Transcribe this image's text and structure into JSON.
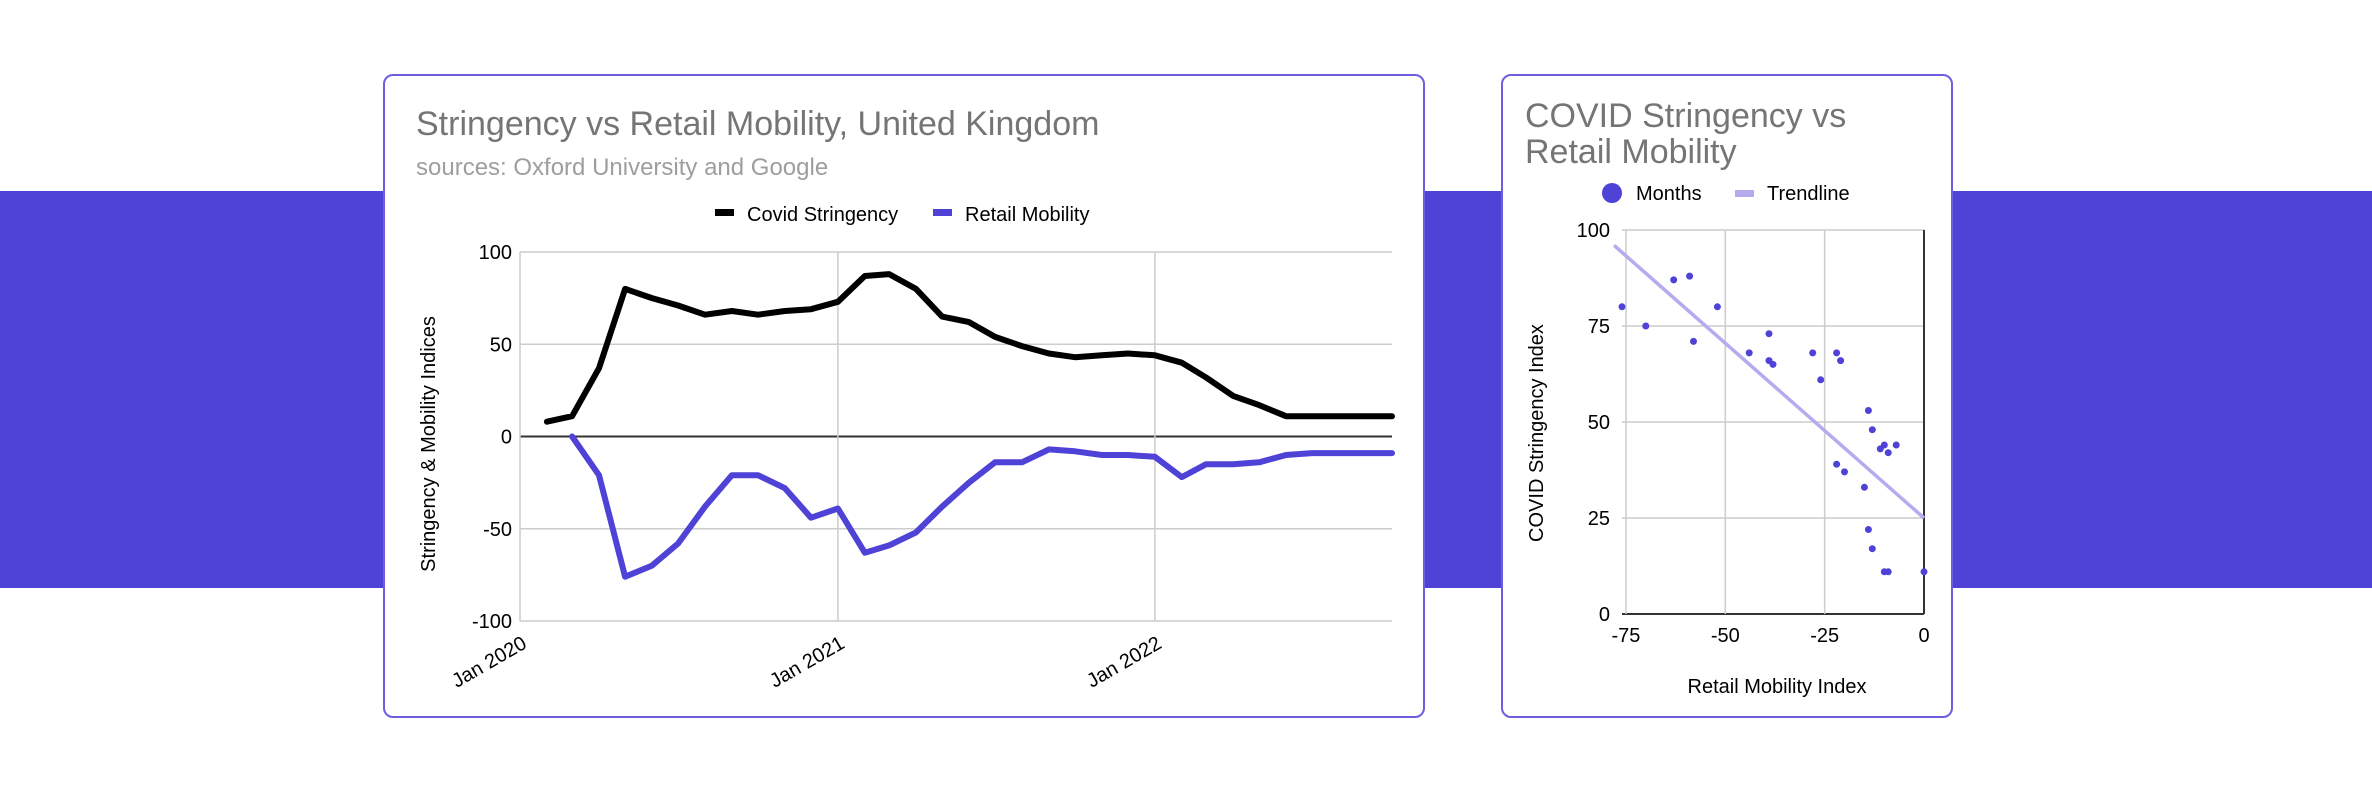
{
  "chart_data": [
    {
      "type": "line",
      "title": "Stringency vs Retail Mobility, United Kingdom",
      "subtitle": "sources: Oxford University and Google",
      "xlabel": "",
      "ylabel": "Stringency & Mobility Indices",
      "x_tick_labels": [
        "Jan 2020",
        "Jan 2021",
        "Jan 2022"
      ],
      "y_tick_labels": [
        "100",
        "50",
        "0",
        "-50",
        "-100"
      ],
      "ylim": [
        -100,
        100
      ],
      "grid": true,
      "legend_position": "top",
      "x": [
        "2020-02",
        "2020-03",
        "2020-04",
        "2020-05",
        "2020-06",
        "2020-07",
        "2020-08",
        "2020-09",
        "2020-10",
        "2020-11",
        "2020-12",
        "2021-01",
        "2021-02",
        "2021-03",
        "2021-04",
        "2021-05",
        "2021-06",
        "2021-07",
        "2021-08",
        "2021-09",
        "2021-10",
        "2021-11",
        "2021-12",
        "2022-01",
        "2022-02",
        "2022-03",
        "2022-04",
        "2022-05",
        "2022-06",
        "2022-07",
        "2022-08",
        "2022-09",
        "2022-10"
      ],
      "series": [
        {
          "name": "Covid Stringency",
          "color": "#000000",
          "values": [
            8,
            11,
            37,
            80,
            75,
            71,
            66,
            68,
            66,
            68,
            69,
            73,
            87,
            88,
            80,
            65,
            62,
            54,
            49,
            45,
            43,
            44,
            45,
            44,
            40,
            32,
            22,
            17,
            11,
            11,
            11,
            11,
            11
          ]
        },
        {
          "name": "Retail Mobility",
          "color": "#4f42d6",
          "values": [
            null,
            0,
            -21,
            -76,
            -70,
            -58,
            -38,
            -21,
            -21,
            -28,
            -44,
            -39,
            -63,
            -59,
            -52,
            -38,
            -25,
            -14,
            -14,
            -7,
            -8,
            -10,
            -10,
            -11,
            -22,
            -15,
            -15,
            -14,
            -10,
            -9,
            -9,
            -9,
            -9
          ]
        }
      ]
    },
    {
      "type": "scatter",
      "title": "COVID Stringency vs Retail Mobility",
      "xlabel": "Retail Mobility Index",
      "ylabel": "COVID Stringency Index",
      "x_tick_labels": [
        "-75",
        "-50",
        "-25",
        "0"
      ],
      "y_tick_labels": [
        "100",
        "75",
        "50",
        "25",
        "0"
      ],
      "xlim": [
        -76,
        0
      ],
      "ylim": [
        0,
        100
      ],
      "grid": true,
      "legend_position": "top",
      "series": [
        {
          "name": "Months",
          "color": "#4f42d6",
          "points": [
            [
              -76,
              80
            ],
            [
              -70,
              75
            ],
            [
              -63,
              87
            ],
            [
              -59,
              88
            ],
            [
              -58,
              71
            ],
            [
              -52,
              80
            ],
            [
              -44,
              68
            ],
            [
              -39,
              73
            ],
            [
              -39,
              66
            ],
            [
              -38,
              65
            ],
            [
              -28,
              68
            ],
            [
              -26,
              61
            ],
            [
              -22,
              68
            ],
            [
              -21,
              66
            ],
            [
              -22,
              39
            ],
            [
              -20,
              37
            ],
            [
              -15,
              33
            ],
            [
              -14,
              53
            ],
            [
              -13,
              48
            ],
            [
              -11,
              43
            ],
            [
              -10,
              44
            ],
            [
              -9,
              42
            ],
            [
              -7,
              44
            ],
            [
              -14,
              22
            ],
            [
              -13,
              17
            ],
            [
              -10,
              11
            ],
            [
              -9,
              11
            ],
            [
              0,
              11
            ]
          ]
        },
        {
          "name": "Trendline",
          "color": "#b3acee",
          "line": [
            [
              -78,
              96
            ],
            [
              0,
              25
            ]
          ]
        }
      ]
    }
  ]
}
